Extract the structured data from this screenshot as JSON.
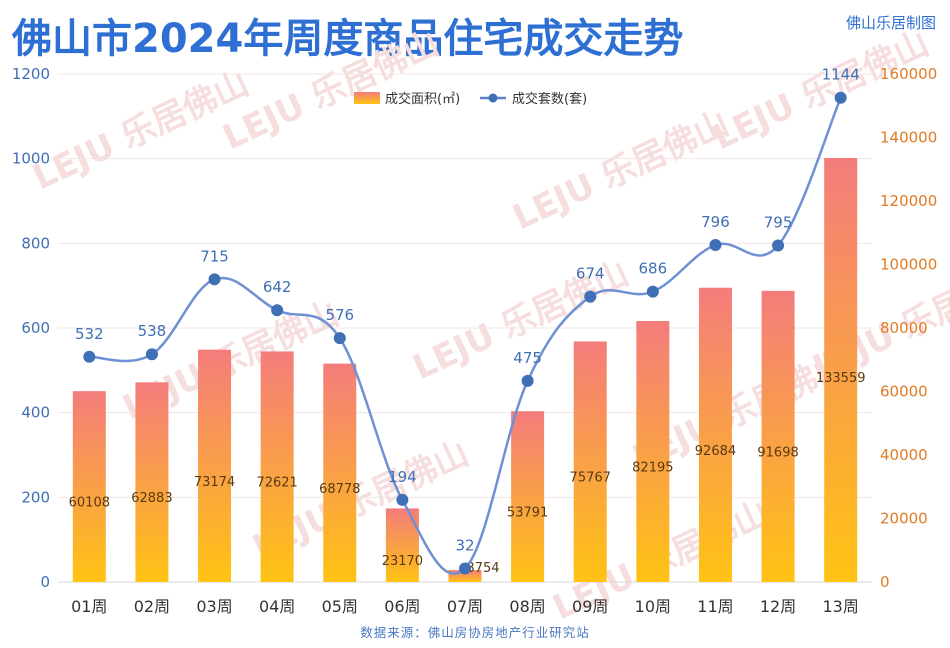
{
  "header": {
    "title": "佛山市2024年周度商品住宅成交走势",
    "credit": "佛山乐居制图"
  },
  "footer": {
    "source": "数据来源：佛山房协房地产行业研究站"
  },
  "watermark": {
    "text": "LEJU 乐居佛山"
  },
  "colors": {
    "title": "#2e6fd3",
    "line": "#5b82cc",
    "bar_top": "#f47c7c",
    "bar_bottom": "#ffc313",
    "left_axis": "#3f6fb5",
    "right_axis": "#e07b24"
  },
  "chart_data": {
    "type": "bar",
    "categories": [
      "01周",
      "02周",
      "03周",
      "04周",
      "05周",
      "06周",
      "07周",
      "08周",
      "09周",
      "10周",
      "11周",
      "12周",
      "13周"
    ],
    "series": [
      {
        "name": "成交面积(㎡)",
        "type": "bar",
        "axis": "right",
        "values": [
          60108,
          62883,
          73174,
          72621,
          68778,
          23170,
          3754,
          53791,
          75767,
          82195,
          92684,
          91698,
          133559
        ]
      },
      {
        "name": "成交套数(套)",
        "type": "line",
        "axis": "left",
        "values": [
          532,
          538,
          715,
          642,
          576,
          194,
          32,
          475,
          674,
          686,
          796,
          795,
          1144
        ]
      }
    ],
    "left_axis": {
      "ylim": [
        0,
        1200
      ],
      "ticks": [
        "0",
        "200",
        "400",
        "600",
        "800",
        "1000",
        "1200"
      ]
    },
    "right_axis": {
      "ylim": [
        0,
        160000
      ],
      "ticks": [
        "0",
        "20000",
        "40000",
        "60000",
        "80000",
        "100000",
        "120000",
        "140000",
        "160000"
      ]
    },
    "grid": true,
    "legend": "top-center"
  }
}
